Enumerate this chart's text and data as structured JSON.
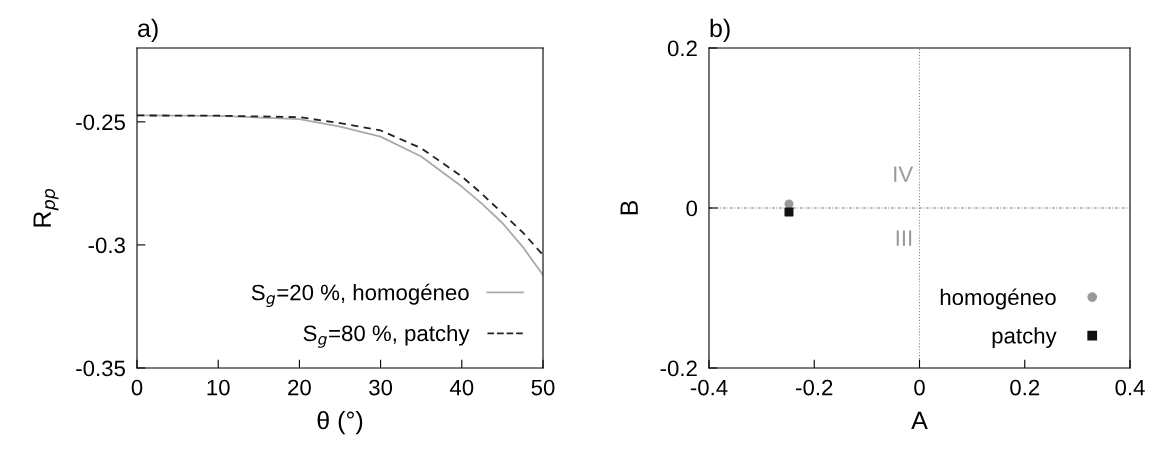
{
  "chart_data": [
    {
      "type": "line",
      "title": "a)",
      "xlabel": "θ (°)",
      "ylabel": "R$_{pp}$",
      "x": [
        0,
        10,
        20,
        25,
        30,
        35,
        40,
        42.5,
        45,
        47.5,
        50
      ],
      "series": [
        {
          "name": "S$_{g}$=20 %, homogéneo",
          "color": "#aaaaaa",
          "line_style": "solid",
          "values": [
            -0.2474,
            -0.2476,
            -0.2489,
            -0.2519,
            -0.256,
            -0.2641,
            -0.2763,
            -0.2833,
            -0.2911,
            -0.3008,
            -0.3122
          ]
        },
        {
          "name": "S$_{g}$=80 %, patchy",
          "color": "#222222",
          "line_style": "dashed",
          "values": [
            -0.2474,
            -0.2475,
            -0.2481,
            -0.2505,
            -0.2535,
            -0.2607,
            -0.2722,
            -0.2793,
            -0.2871,
            -0.2949,
            -0.3041
          ]
        }
      ],
      "xlim": [
        0,
        50
      ],
      "xticks": [
        0,
        10,
        20,
        30,
        40,
        50
      ],
      "ylim": [
        -0.35,
        -0.22
      ],
      "yticks": [
        -0.35,
        -0.3,
        -0.25
      ],
      "legend": "bottom right",
      "grid": false
    },
    {
      "type": "scatter",
      "title": "b)",
      "xlabel": "A",
      "ylabel": "B",
      "series": [
        {
          "name": "homogéneo",
          "color": "#999999",
          "marker": "circle",
          "x": [
            -0.248
          ],
          "values": [
            0.005
          ]
        },
        {
          "name": "patchy",
          "color": "#111111",
          "marker": "square",
          "x": [
            -0.248
          ],
          "values": [
            -0.005
          ]
        }
      ],
      "xlim": [
        -0.4,
        0.4
      ],
      "xticks": [
        -0.4,
        -0.2,
        0,
        0.2,
        0.4
      ],
      "ylim": [
        -0.2,
        0.2
      ],
      "yticks": [
        -0.2,
        0,
        0.2
      ],
      "ref_lines": [
        {
          "axis": "x",
          "value": 0,
          "color": "#888888",
          "line_style": "dotted"
        },
        {
          "axis": "y",
          "value": 0,
          "color": "#777777",
          "line_style": "dashed"
        }
      ],
      "annotations": [
        "IV",
        "III"
      ],
      "legend": "bottom right",
      "grid": false
    }
  ]
}
